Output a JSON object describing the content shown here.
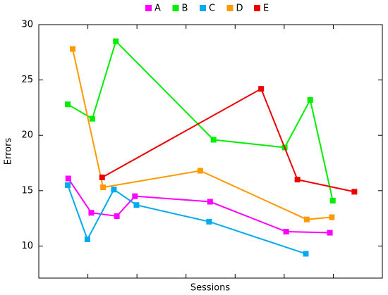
{
  "chart_data": {
    "type": "line",
    "x_label": "Sessions",
    "y_label": "Errors",
    "xlim": [
      0,
      7
    ],
    "xticks": [
      1,
      2,
      3,
      4,
      5,
      6
    ],
    "ylim": [
      7.1,
      30
    ],
    "yticks": [
      10,
      15,
      20,
      25,
      30
    ],
    "legend_position": "top",
    "series": [
      {
        "name": "A",
        "color": "#ff00ff",
        "x": [
          0.6,
          1.07,
          1.59,
          1.96,
          3.49,
          5.04,
          5.93
        ],
        "values": [
          16.1,
          13.0,
          12.7,
          14.5,
          14.0,
          11.3,
          11.2
        ]
      },
      {
        "name": "B",
        "color": "#00ee00",
        "x": [
          0.59,
          1.09,
          1.57,
          3.56,
          5.01,
          5.53,
          5.99
        ],
        "values": [
          22.8,
          21.5,
          28.5,
          19.6,
          18.9,
          23.2,
          14.1
        ]
      },
      {
        "name": "C",
        "color": "#00aaee",
        "x": [
          0.59,
          0.99,
          1.53,
          1.99,
          3.47,
          5.44
        ],
        "values": [
          15.5,
          10.6,
          15.1,
          13.7,
          12.2,
          9.3
        ]
      },
      {
        "name": "D",
        "color": "#ff9900",
        "x": [
          0.69,
          1.31,
          3.29,
          5.46,
          5.97
        ],
        "values": [
          27.8,
          15.3,
          16.8,
          12.4,
          12.6
        ]
      },
      {
        "name": "E",
        "color": "#ee0000",
        "x": [
          1.29,
          4.53,
          5.27,
          6.43
        ],
        "values": [
          16.2,
          24.2,
          16.0,
          14.9
        ]
      }
    ]
  }
}
